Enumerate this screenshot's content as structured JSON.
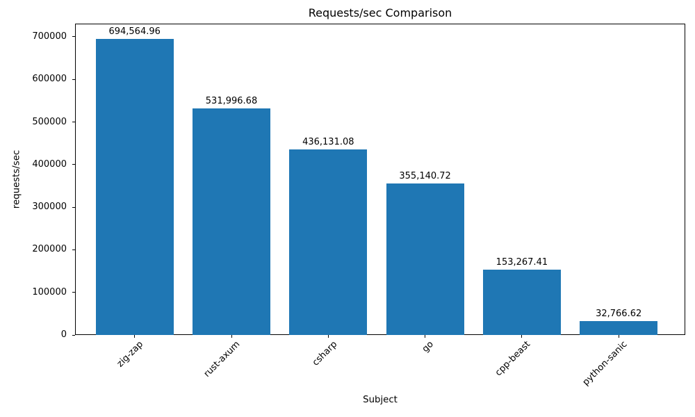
{
  "chart_data": {
    "type": "bar",
    "title": "Requests/sec Comparison",
    "xlabel": "Subject",
    "ylabel": "requests/sec",
    "categories": [
      "zig-zap",
      "rust-axum",
      "csharp",
      "go",
      "cpp-beast",
      "python-sanic"
    ],
    "values": [
      694564.96,
      531996.68,
      436131.08,
      355140.72,
      153267.41,
      32766.62
    ],
    "bar_labels": [
      "694,564.96",
      "531,996.68",
      "436,131.08",
      "355,140.72",
      "153,267.41",
      "32,766.62"
    ],
    "bar_color": "#1f77b4",
    "text_color": "#000000",
    "ytick_values": [
      0,
      100000,
      200000,
      300000,
      400000,
      500000,
      600000,
      700000
    ],
    "ytick_labels": [
      "0",
      "100000",
      "200000",
      "300000",
      "400000",
      "500000",
      "600000",
      "700000"
    ],
    "ylim": [
      0,
      731000
    ],
    "grid": false,
    "legend_position": "none"
  }
}
